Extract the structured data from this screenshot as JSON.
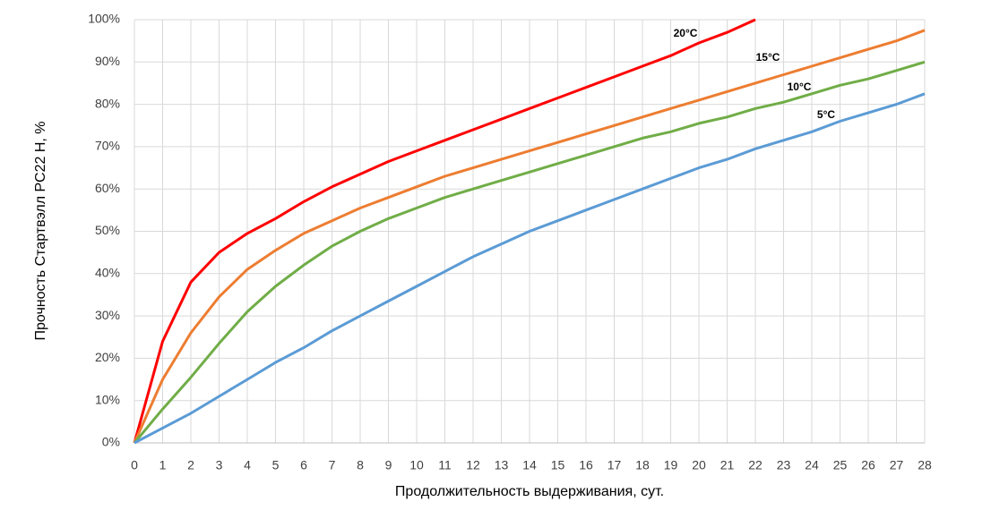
{
  "chart_data": {
    "type": "line",
    "x_label": "Продолжительность выдерживания, сут.",
    "y_label": "Прочность Стартвэлл РС22 Н, %",
    "x": [
      0,
      1,
      2,
      3,
      4,
      5,
      6,
      7,
      8,
      9,
      10,
      11,
      12,
      13,
      14,
      15,
      16,
      17,
      18,
      19,
      20,
      21,
      22,
      23,
      24,
      25,
      26,
      27,
      28
    ],
    "series": [
      {
        "name": "20°C",
        "color": "#ff0000",
        "values": [
          0,
          24,
          38,
          45,
          49.5,
          53,
          57,
          60.5,
          63.5,
          66.5,
          69,
          71.5,
          74,
          76.5,
          79,
          81.5,
          84,
          86.5,
          89,
          91.5,
          94.5,
          97,
          100,
          null,
          null,
          null,
          null,
          null,
          null
        ]
      },
      {
        "name": "15°C",
        "color": "#ed7d31",
        "values": [
          0,
          15,
          26,
          34.5,
          41,
          45.5,
          49.5,
          52.5,
          55.5,
          58,
          60.5,
          63,
          65,
          67,
          69,
          71,
          73,
          75,
          77,
          79,
          81,
          83,
          85,
          87,
          89,
          91,
          93,
          95,
          97.5
        ]
      },
      {
        "name": "10°C",
        "color": "#70ad47",
        "values": [
          0,
          8,
          15.5,
          23.5,
          31,
          37,
          42,
          46.5,
          50,
          53,
          55.5,
          58,
          60,
          62,
          64,
          66,
          68,
          70,
          72,
          73.5,
          75.5,
          77,
          79,
          80.5,
          82.5,
          84.5,
          86,
          88,
          90
        ]
      },
      {
        "name": "5°C",
        "color": "#5b9bd5",
        "values": [
          0,
          3.5,
          7,
          11,
          15,
          19,
          22.5,
          26.5,
          30,
          33.5,
          37,
          40.5,
          44,
          47,
          50,
          52.5,
          55,
          57.5,
          60,
          62.5,
          65,
          67,
          69.5,
          71.5,
          73.5,
          76,
          78,
          80,
          82.5
        ]
      }
    ],
    "xlim": [
      0,
      28
    ],
    "xticks": [
      0,
      1,
      2,
      3,
      4,
      5,
      6,
      7,
      8,
      9,
      10,
      11,
      12,
      13,
      14,
      15,
      16,
      17,
      18,
      19,
      20,
      21,
      22,
      23,
      24,
      25,
      26,
      27,
      28
    ],
    "ylim": [
      0,
      100
    ],
    "yticks": [
      {
        "value": 0,
        "label": "0%"
      },
      {
        "value": 10,
        "label": "10%"
      },
      {
        "value": 20,
        "label": "20%"
      },
      {
        "value": 30,
        "label": "30%"
      },
      {
        "value": 40,
        "label": "40%"
      },
      {
        "value": 50,
        "label": "50%"
      },
      {
        "value": 60,
        "label": "60%"
      },
      {
        "value": 70,
        "label": "70%"
      },
      {
        "value": 80,
        "label": "80%"
      },
      {
        "value": 90,
        "label": "90%"
      },
      {
        "value": 100,
        "label": "100%"
      }
    ],
    "grid": true
  }
}
